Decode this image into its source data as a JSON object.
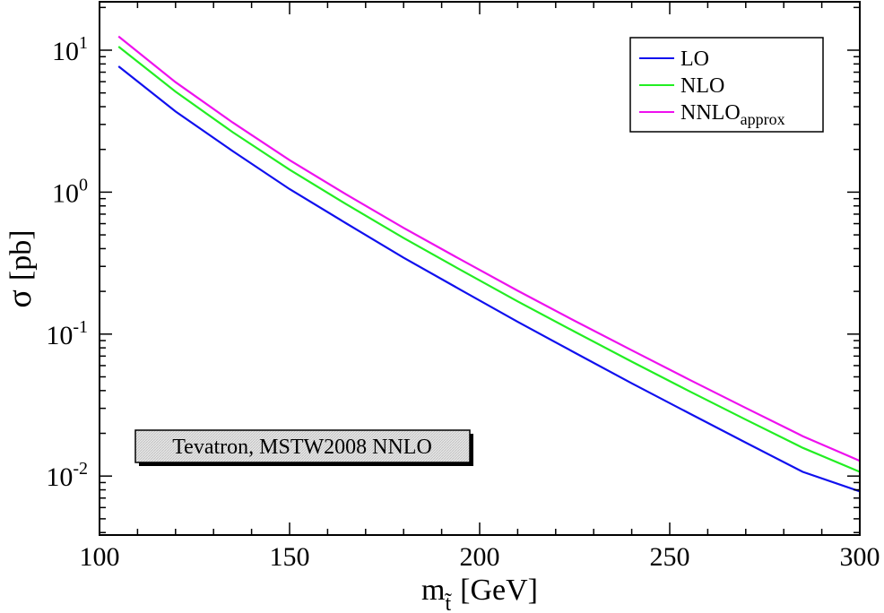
{
  "chart_data": {
    "type": "line",
    "title": "",
    "xlabel": {
      "main": "m",
      "sub": "t̃",
      "unit": "[GeV]"
    },
    "ylabel": {
      "symbol": "σ",
      "unit": "[pb]"
    },
    "xlim": [
      100,
      300
    ],
    "ylim": [
      0.004,
      20
    ],
    "yscale": "log",
    "grid": false,
    "legend_position": "top-right",
    "x_ticks": [
      {
        "value": 100,
        "label": "100"
      },
      {
        "value": 150,
        "label": "150"
      },
      {
        "value": 200,
        "label": "200"
      },
      {
        "value": 250,
        "label": "250"
      },
      {
        "value": 300,
        "label": "300"
      }
    ],
    "y_ticks": [
      {
        "value": 10,
        "base": "10",
        "exp": "1"
      },
      {
        "value": 1,
        "base": "10",
        "exp": "0"
      },
      {
        "value": 0.1,
        "base": "10",
        "exp": "-1"
      },
      {
        "value": 0.01,
        "base": "10",
        "exp": "-2"
      }
    ],
    "x": [
      105,
      120,
      135,
      150,
      165,
      180,
      195,
      210,
      225,
      240,
      255,
      270,
      285,
      300
    ],
    "series": [
      {
        "name": "LO",
        "label_main": "LO",
        "label_sub": "",
        "color": "#1010ee",
        "values": [
          7.7,
          3.7,
          1.95,
          1.05,
          0.6,
          0.345,
          0.205,
          0.122,
          0.074,
          0.045,
          0.0278,
          0.0172,
          0.0107,
          0.0078
        ]
      },
      {
        "name": "NLO",
        "label_main": "NLO",
        "label_sub": "",
        "color": "#22ee22",
        "values": [
          10.6,
          5.1,
          2.65,
          1.44,
          0.82,
          0.475,
          0.283,
          0.17,
          0.104,
          0.064,
          0.0398,
          0.025,
          0.0158,
          0.0107
        ]
      },
      {
        "name": "NNLO_approx",
        "label_main": "NNLO",
        "label_sub": "approx",
        "color": "#ee10ee",
        "values": [
          12.5,
          5.95,
          3.1,
          1.68,
          0.96,
          0.56,
          0.335,
          0.202,
          0.124,
          0.077,
          0.048,
          0.0302,
          0.0191,
          0.0128
        ]
      }
    ],
    "annotation": "Tevatron, MSTW2008 NNLO"
  }
}
